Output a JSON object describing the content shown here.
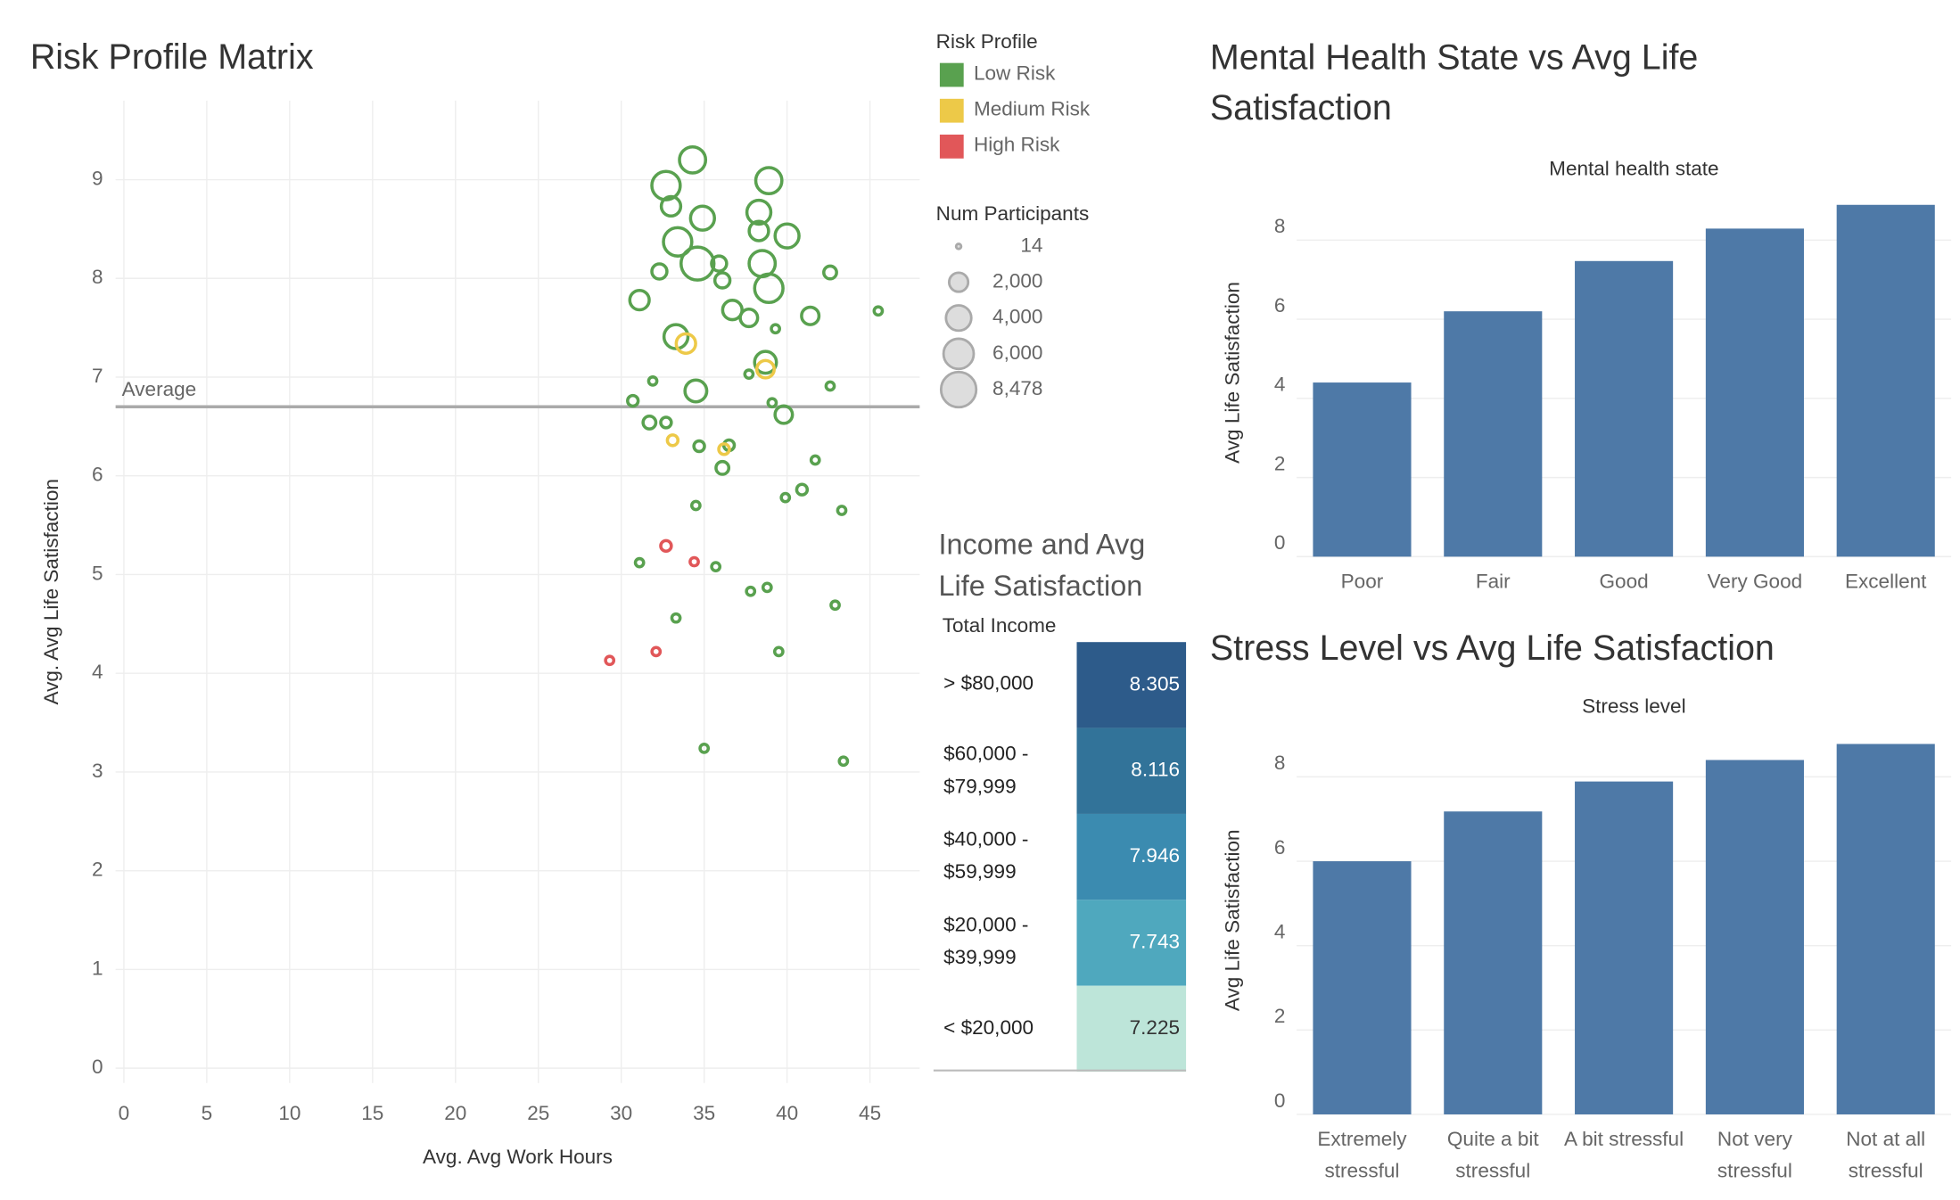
{
  "chart_data": [
    {
      "type": "scatter",
      "title": "Risk Profile Matrix",
      "x_label": "Avg. Avg Work Hours",
      "y_label": "Avg. Avg Life Satisfaction",
      "xlim": [
        -0.5,
        48
      ],
      "ylim": [
        -0.15,
        9.8
      ],
      "xticks": [
        0,
        5,
        10,
        15,
        20,
        25,
        30,
        35,
        40,
        45
      ],
      "yticks": [
        0,
        1,
        2,
        3,
        4,
        5,
        6,
        7,
        8,
        9
      ],
      "grid": true,
      "reference_line": {
        "label": "Average",
        "value": 6.7
      },
      "legend_title": "Risk Profile",
      "size_legend": {
        "title": "Num Participants",
        "values": [
          14,
          {
            "value": 2000,
            "label": "2,000"
          },
          {
            "value": 4000,
            "label": "4,000"
          },
          {
            "value": 6000,
            "label": "6,000"
          },
          {
            "value": 8478,
            "label": "8,478"
          }
        ]
      },
      "series": [
        {
          "name": "Low Risk",
          "color": "#59a14f",
          "x": [
            34.3,
            32.7,
            38.9,
            33.0,
            34.9,
            38.3,
            40.0,
            38.3,
            33.4,
            34.6,
            38.5,
            38.9,
            35.9,
            36.1,
            32.3,
            42.6,
            31.1,
            36.7,
            37.7,
            41.4,
            45.5,
            39.3,
            33.3,
            38.7,
            37.7,
            31.9,
            42.6,
            34.5,
            30.7,
            39.1,
            39.8,
            31.7,
            32.7,
            34.7,
            36.5,
            36.1,
            41.7,
            40.9,
            39.9,
            34.5,
            43.3,
            31.1,
            35.7,
            37.8,
            38.8,
            42.9,
            33.3,
            39.5,
            35.0,
            43.4
          ],
          "values": [
            9.2,
            8.94,
            8.99,
            8.73,
            8.61,
            8.67,
            8.43,
            8.48,
            8.37,
            8.15,
            8.15,
            7.9,
            8.15,
            7.98,
            8.07,
            8.06,
            7.78,
            7.68,
            7.6,
            7.62,
            7.67,
            7.49,
            7.41,
            7.15,
            7.03,
            6.96,
            6.91,
            6.86,
            6.76,
            6.74,
            6.62,
            6.54,
            6.54,
            6.3,
            6.31,
            6.08,
            6.16,
            5.86,
            5.78,
            5.7,
            5.65,
            5.12,
            5.08,
            4.83,
            4.87,
            4.69,
            4.56,
            4.22,
            3.24,
            3.11
          ],
          "sizes": [
            4300,
            5200,
            4300,
            2100,
            3500,
            3500,
            3500,
            2100,
            5200,
            7300,
            4300,
            5200,
            1100,
            1100,
            1100,
            700,
            2100,
            2100,
            1600,
            1600,
            170,
            170,
            3500,
            2800,
            170,
            170,
            170,
            2800,
            400,
            170,
            1600,
            700,
            400,
            400,
            400,
            700,
            170,
            400,
            170,
            170,
            170,
            170,
            170,
            170,
            170,
            170,
            170,
            170,
            170,
            170
          ]
        },
        {
          "name": "Medium Risk",
          "color": "#edc948",
          "x": [
            33.9,
            38.7,
            33.1,
            36.2
          ],
          "values": [
            7.34,
            7.08,
            6.36,
            6.27
          ],
          "sizes": [
            2100,
            1600,
            400,
            400
          ]
        },
        {
          "name": "High Risk",
          "color": "#e15759",
          "x": [
            32.7,
            34.4,
            29.3,
            32.1
          ],
          "values": [
            5.29,
            5.13,
            4.13,
            4.22
          ],
          "sizes": [
            400,
            170,
            170,
            170
          ]
        }
      ]
    },
    {
      "type": "highlight-table",
      "title": "Income and Avg Life Satisfaction",
      "column_label": "Total Income",
      "categories": [
        "> $80,000",
        "$60,000 - $79,999",
        "$40,000 - $59,999",
        "$20,000 - $39,999",
        "< $20,000"
      ],
      "values": [
        8.305,
        8.116,
        7.946,
        7.743,
        7.225
      ],
      "colors": [
        "#2d5b8a",
        "#327399",
        "#3b8bb0",
        "#4fa8be",
        "#bde5d9"
      ]
    },
    {
      "type": "bar",
      "title": "Mental Health State vs Avg Life Satisfaction",
      "x_label": "Mental health state",
      "y_label": "Avg Life Satisfaction",
      "categories": [
        "Poor",
        "Fair",
        "Good",
        "Very Good",
        "Excellent"
      ],
      "values": [
        4.4,
        6.2,
        7.47,
        8.29,
        8.89
      ],
      "color": "#4e79a7",
      "ylim": [
        0,
        9.3
      ],
      "yticks": [
        0,
        2,
        4,
        6,
        8
      ],
      "grid": true
    },
    {
      "type": "bar",
      "title": "Stress Level vs Avg Life Satisfaction",
      "x_label": "Stress level",
      "y_label": "Avg Life Satisfaction",
      "categories": [
        "Extremely stressful",
        "Quite a bit stressful",
        "A bit stressful",
        "Not very stressful",
        "Not at all stressful"
      ],
      "values": [
        6.0,
        7.18,
        7.89,
        8.4,
        8.78
      ],
      "color": "#4e79a7",
      "ylim": [
        0,
        9.2
      ],
      "yticks": [
        0,
        2,
        4,
        6,
        8
      ],
      "grid": true
    }
  ]
}
